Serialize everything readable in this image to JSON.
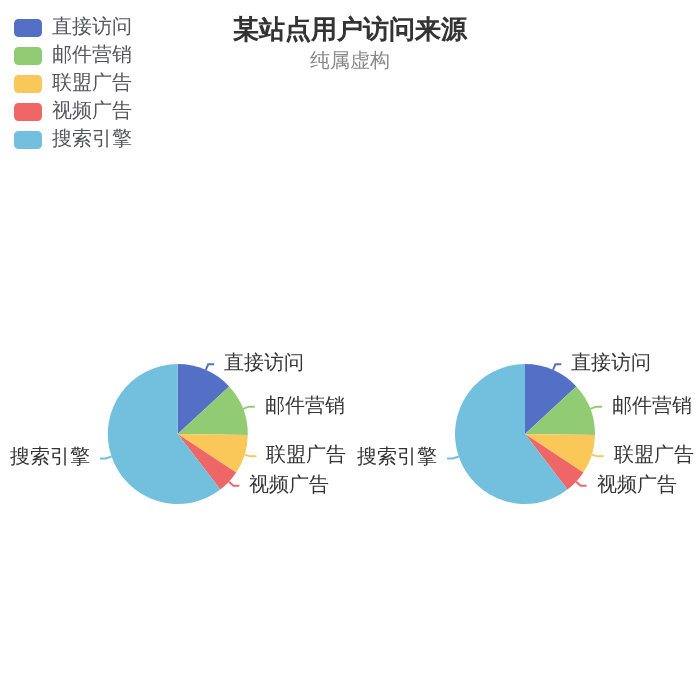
{
  "chart_data": [
    {
      "type": "pie",
      "title": "某站点用户访问来源",
      "subtitle": "纯属虚构",
      "categories": [
        "直接访问",
        "邮件营销",
        "联盟广告",
        "视频广告",
        "搜索引擎"
      ],
      "values": [
        13.1,
        12.1,
        9.1,
        5.3,
        60.4
      ],
      "colors": [
        "#5470c6",
        "#91cc75",
        "#fac858",
        "#ee6666",
        "#73c0de"
      ],
      "legend": "top left"
    },
    {
      "type": "pie",
      "categories": [
        "直接访问",
        "邮件营销",
        "联盟广告",
        "视频广告",
        "搜索引擎"
      ],
      "values": [
        13.1,
        12.1,
        9.1,
        5.3,
        60.4
      ],
      "colors": [
        "#5470c6",
        "#91cc75",
        "#fac858",
        "#ee6666",
        "#73c0de"
      ]
    }
  ]
}
